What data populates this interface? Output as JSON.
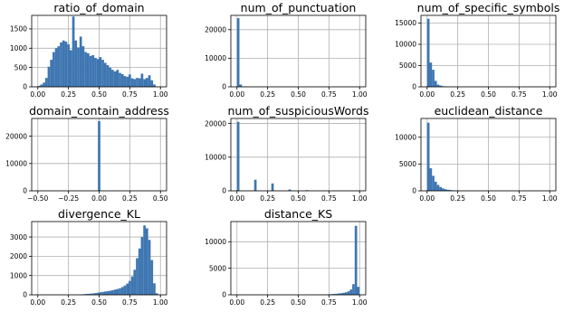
{
  "chart_data": [
    {
      "type": "bar",
      "title": "ratio_of_domain",
      "xlim": [
        -0.05,
        1.05
      ],
      "ylim": [
        0,
        1850
      ],
      "grid": true,
      "xticks": [
        0.0,
        0.25,
        0.5,
        0.75,
        1.0
      ],
      "xtick_labels": [
        "0.00",
        "0.25",
        "0.50",
        "0.75",
        "1.00"
      ],
      "yticks": [
        0,
        500,
        1000,
        1500
      ],
      "ytick_labels": [
        "0",
        "500",
        "1000",
        "1500"
      ],
      "bin_start": 0.0,
      "bin_width": 0.02,
      "values": [
        25,
        60,
        110,
        230,
        520,
        700,
        900,
        1000,
        1050,
        1150,
        1200,
        1170,
        1100,
        950,
        1820,
        1200,
        1020,
        1300,
        1050,
        900,
        870,
        800,
        820,
        750,
        720,
        770,
        700,
        620,
        560,
        500,
        440,
        400,
        440,
        360,
        330,
        280,
        260,
        320,
        220,
        200,
        230,
        220,
        340,
        200,
        230,
        300,
        170,
        60
      ]
    },
    {
      "type": "bar",
      "title": "num_of_punctuation",
      "xlim": [
        -0.05,
        1.05
      ],
      "ylim": [
        0,
        25000
      ],
      "grid": true,
      "xticks": [
        0.0,
        0.25,
        0.5,
        0.75,
        1.0
      ],
      "xtick_labels": [
        "0.00",
        "0.25",
        "0.50",
        "0.75",
        "1.00"
      ],
      "yticks": [
        0,
        10000,
        20000
      ],
      "ytick_labels": [
        "0",
        "10000",
        "20000"
      ],
      "bin_start": 0.0,
      "bin_width": 0.02,
      "values": [
        24000,
        800,
        150,
        60,
        30,
        20,
        10,
        5
      ]
    },
    {
      "type": "bar",
      "title": "num_of_specific_symbols",
      "xlim": [
        -0.05,
        1.05
      ],
      "ylim": [
        0,
        16800
      ],
      "grid": true,
      "xticks": [
        0.0,
        0.25,
        0.5,
        0.75,
        1.0
      ],
      "xtick_labels": [
        "0.00",
        "0.25",
        "0.50",
        "0.75",
        "1.00"
      ],
      "yticks": [
        0,
        5000,
        10000,
        15000
      ],
      "ytick_labels": [
        "0",
        "5000",
        "10000",
        "15000"
      ],
      "bin_start": 0.0,
      "bin_width": 0.02,
      "values": [
        16000,
        5700,
        4000,
        1400,
        500,
        300,
        150,
        80,
        40,
        20,
        10,
        5
      ]
    },
    {
      "type": "bar",
      "title": "domain_contain_address",
      "xlim": [
        -0.55,
        0.55
      ],
      "ylim": [
        0,
        26500
      ],
      "grid": true,
      "xticks": [
        -0.5,
        -0.25,
        0.0,
        0.25,
        0.5
      ],
      "xtick_labels": [
        "−0.50",
        "−0.25",
        "0.00",
        "0.25",
        "0.50"
      ],
      "yticks": [
        0,
        10000,
        20000
      ],
      "ytick_labels": [
        "0",
        "10000",
        "20000"
      ],
      "bin_start": -0.01,
      "bin_width": 0.02,
      "values": [
        25500
      ]
    },
    {
      "type": "bar",
      "title": "num_of_suspiciousWords",
      "xlim": [
        -0.05,
        1.05
      ],
      "ylim": [
        0,
        21500
      ],
      "grid": true,
      "xticks": [
        0.0,
        0.25,
        0.5,
        0.75,
        1.0
      ],
      "xtick_labels": [
        "0.00",
        "0.25",
        "0.50",
        "0.75",
        "1.00"
      ],
      "yticks": [
        0,
        10000,
        20000
      ],
      "ytick_labels": [
        "0",
        "10000",
        "20000"
      ],
      "bin_start": 0.0,
      "bin_width": 0.02,
      "values": [
        20500,
        0,
        0,
        0,
        0,
        0,
        0,
        3300,
        0,
        0,
        0,
        0,
        0,
        0,
        2200,
        0,
        0,
        0,
        0,
        0,
        0,
        400,
        0,
        0,
        0,
        0,
        0,
        0,
        200,
        0,
        0,
        0,
        0,
        0,
        0,
        50
      ]
    },
    {
      "type": "bar",
      "title": "euclidean_distance",
      "xlim": [
        -0.05,
        1.05
      ],
      "ylim": [
        0,
        13500
      ],
      "grid": true,
      "xticks": [
        0.0,
        0.25,
        0.5,
        0.75,
        1.0
      ],
      "xtick_labels": [
        "0.00",
        "0.25",
        "0.50",
        "0.75",
        "1.00"
      ],
      "yticks": [
        0,
        5000,
        10000
      ],
      "ytick_labels": [
        "0",
        "5000",
        "10000"
      ],
      "bin_start": 0.0,
      "bin_width": 0.02,
      "values": [
        12700,
        4200,
        2800,
        1700,
        1100,
        700,
        450,
        300,
        200,
        150,
        100,
        70,
        50,
        30,
        20,
        15,
        10,
        8,
        5
      ]
    },
    {
      "type": "bar",
      "title": "divergence_KL",
      "xlim": [
        -0.05,
        1.05
      ],
      "ylim": [
        0,
        3800
      ],
      "grid": true,
      "xticks": [
        0.0,
        0.25,
        0.5,
        0.75,
        1.0
      ],
      "xtick_labels": [
        "0.00",
        "0.25",
        "0.50",
        "0.75",
        "1.00"
      ],
      "yticks": [
        0,
        1000,
        2000,
        3000
      ],
      "ytick_labels": [
        "0",
        "1000",
        "2000",
        "3000"
      ],
      "bin_start": 0.0,
      "bin_width": 0.02,
      "values": [
        0,
        0,
        0,
        0,
        0,
        0,
        0,
        0,
        0,
        0,
        0,
        0,
        0,
        0,
        0,
        5,
        10,
        20,
        30,
        40,
        50,
        60,
        70,
        90,
        110,
        130,
        150,
        170,
        190,
        210,
        240,
        270,
        300,
        340,
        400,
        480,
        580,
        720,
        950,
        1300,
        1900,
        2400,
        3000,
        3600,
        3450,
        2850,
        1800,
        600,
        80,
        10
      ]
    },
    {
      "type": "bar",
      "title": "distance_KS",
      "xlim": [
        -0.05,
        1.05
      ],
      "ylim": [
        0,
        13800
      ],
      "grid": true,
      "xticks": [
        0.0,
        0.25,
        0.5,
        0.75,
        1.0
      ],
      "xtick_labels": [
        "0.00",
        "0.25",
        "0.50",
        "0.75",
        "1.00"
      ],
      "yticks": [
        0,
        5000,
        10000
      ],
      "ytick_labels": [
        "0",
        "5000",
        "10000"
      ],
      "bin_start": 0.0,
      "bin_width": 0.02,
      "values": [
        0,
        0,
        0,
        0,
        0,
        0,
        0,
        0,
        0,
        0,
        0,
        0,
        0,
        0,
        0,
        0,
        0,
        0,
        0,
        0,
        0,
        0,
        0,
        0,
        0,
        0,
        0,
        0,
        5,
        10,
        15,
        20,
        30,
        40,
        50,
        60,
        80,
        100,
        130,
        160,
        200,
        250,
        300,
        380,
        480,
        650,
        1000,
        2000,
        13000,
        1500
      ]
    }
  ]
}
